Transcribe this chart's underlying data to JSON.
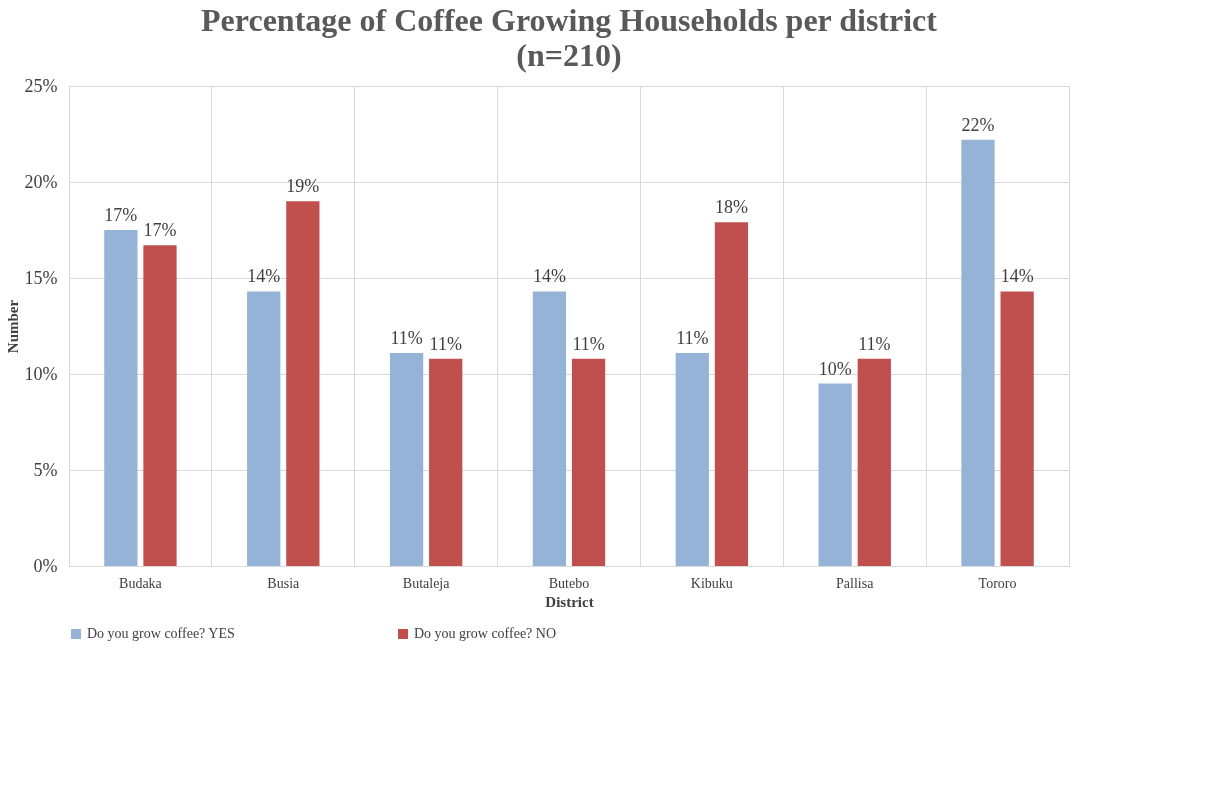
{
  "chart_data": {
    "type": "bar",
    "title": "Percentage of Coffee Growing Households per district",
    "subtitle": "(n=210)",
    "xlabel": "District",
    "ylabel": "Number",
    "categories": [
      "Budaka",
      "Busia",
      "Butaleja",
      "Butebo",
      "Kibuku",
      "Pallisa",
      "Tororo"
    ],
    "series": [
      {
        "name": "Do you grow coffee? YES",
        "color": "#95b3d7",
        "values": [
          17.5,
          14.3,
          11.1,
          14.3,
          11.1,
          9.5,
          22.2
        ],
        "value_labels": [
          "17%",
          "14%",
          "11%",
          "14%",
          "11%",
          "10%",
          "22%"
        ]
      },
      {
        "name": "Do you grow coffee? NO",
        "color": "#c0504d",
        "values": [
          16.7,
          19.0,
          10.8,
          10.8,
          17.9,
          10.8,
          14.3
        ],
        "value_labels": [
          "17%",
          "19%",
          "11%",
          "11%",
          "18%",
          "11%",
          "14%"
        ]
      }
    ],
    "ylim": [
      0,
      25
    ],
    "yticks": [
      {
        "value": 0,
        "label": "0%"
      },
      {
        "value": 5,
        "label": "5%"
      },
      {
        "value": 10,
        "label": "10%"
      },
      {
        "value": 15,
        "label": "15%"
      },
      {
        "value": 20,
        "label": "20%"
      },
      {
        "value": 25,
        "label": "25%"
      }
    ],
    "grid": true,
    "legend": "bottom"
  }
}
